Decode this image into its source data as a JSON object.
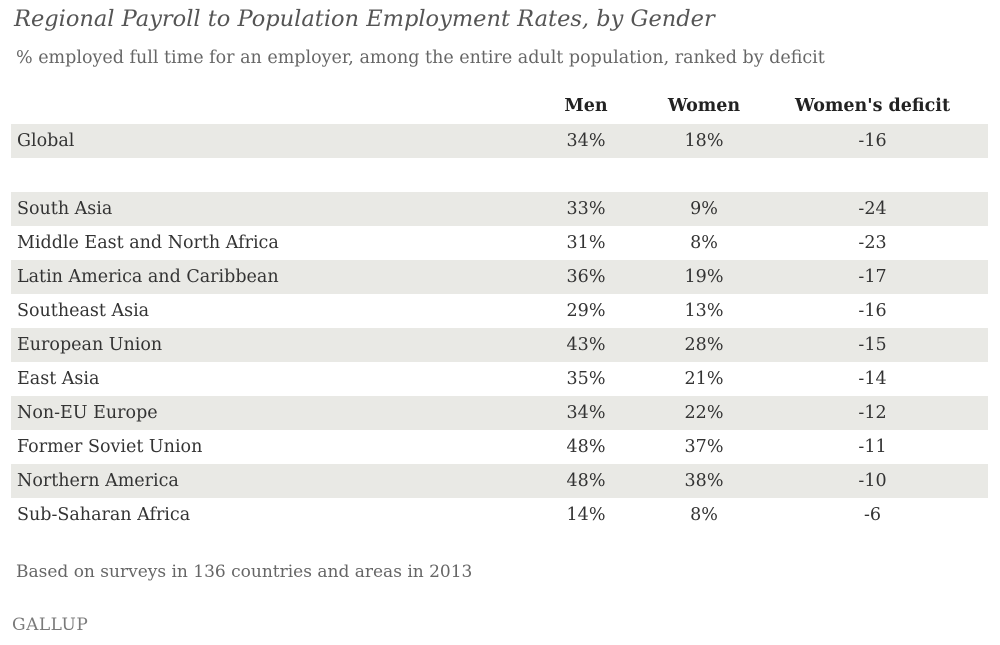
{
  "title": "Regional Payroll to Population Employment Rates, by Gender",
  "subtitle": "% employed full time for an employer, among the entire adult population, ranked by deficit",
  "footnote": "Based on surveys in 136 countries and areas in 2013",
  "logo": "GALLUP",
  "colors": {
    "row_shade": "#e9e9e5",
    "text": "#333333",
    "title": "#555555"
  },
  "chart_data": {
    "type": "table",
    "title": "Regional Payroll to Population Employment Rates, by Gender",
    "subtitle": "% employed full time for an employer, among the entire adult population, ranked by deficit",
    "columns": [
      "",
      "Men",
      "Women",
      "Women's deficit"
    ],
    "rows": [
      {
        "region": "Global",
        "men": "34%",
        "women": "18%",
        "deficit": "-16"
      },
      {
        "region": "South Asia",
        "men": "33%",
        "women": "9%",
        "deficit": "-24"
      },
      {
        "region": "Middle East and North Africa",
        "men": "31%",
        "women": "8%",
        "deficit": "-23"
      },
      {
        "region": "Latin America and Caribbean",
        "men": "36%",
        "women": "19%",
        "deficit": "-17"
      },
      {
        "region": "Southeast Asia",
        "men": "29%",
        "women": "13%",
        "deficit": "-16"
      },
      {
        "region": "European Union",
        "men": "43%",
        "women": "28%",
        "deficit": "-15"
      },
      {
        "region": "East Asia",
        "men": "35%",
        "women": "21%",
        "deficit": "-14"
      },
      {
        "region": "Non-EU Europe",
        "men": "34%",
        "women": "22%",
        "deficit": "-12"
      },
      {
        "region": "Former Soviet Union",
        "men": "48%",
        "women": "37%",
        "deficit": "-11"
      },
      {
        "region": "Northern America",
        "men": "48%",
        "women": "38%",
        "deficit": "-10"
      },
      {
        "region": "Sub-Saharan Africa",
        "men": "14%",
        "women": "8%",
        "deficit": "-6"
      }
    ]
  }
}
